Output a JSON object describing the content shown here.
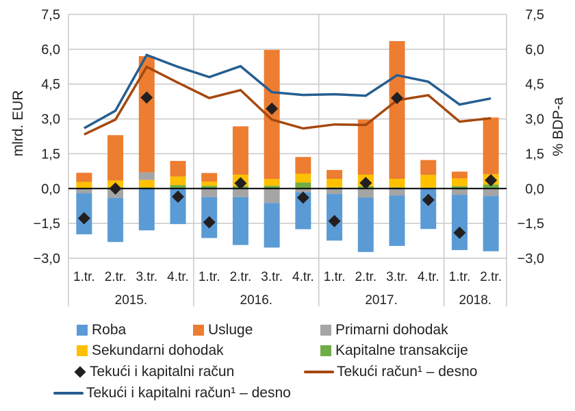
{
  "chart_data": {
    "type": "bar",
    "subtype": "stacked bar with lines and markers",
    "ylabel_left": "mlrd. EUR",
    "ylabel_right": "% BDP-a",
    "ylim": [
      -3.0,
      7.5
    ],
    "yticks": [
      "7,5",
      "6,0",
      "4,5",
      "3,0",
      "1,5",
      "0,0",
      "−1,5",
      "−3,0"
    ],
    "ytick_values": [
      7.5,
      6.0,
      4.5,
      3.0,
      1.5,
      0.0,
      -1.5,
      -3.0
    ],
    "grid": true,
    "categories": [
      "1.tr.",
      "2.tr.",
      "3.tr.",
      "4.tr.",
      "1.tr.",
      "2.tr.",
      "3.tr.",
      "4.tr.",
      "1.tr.",
      "2.tr.",
      "3.tr.",
      "4.tr.",
      "1.tr.",
      "2.tr."
    ],
    "groups": [
      {
        "label": "2015.",
        "count": 4
      },
      {
        "label": "2016.",
        "count": 4
      },
      {
        "label": "2017.",
        "count": 4
      },
      {
        "label": "2018.",
        "count": 2
      }
    ],
    "bar_series": [
      {
        "name": "Roba",
        "color": "#5b9bd5",
        "values": [
          -1.77,
          -1.9,
          -1.8,
          -1.53,
          -1.76,
          -2.06,
          -1.92,
          -1.59,
          -2.01,
          -2.34,
          -2.17,
          -1.74,
          -2.38,
          -2.38
        ]
      },
      {
        "name": "Usluge",
        "color": "#ed7d31",
        "values": [
          0.39,
          1.95,
          5.0,
          0.67,
          0.37,
          2.08,
          5.56,
          0.72,
          0.38,
          2.37,
          5.93,
          0.64,
          0.29,
          2.44
        ]
      },
      {
        "name": "Primarni dohodak",
        "color": "#a5a5a5",
        "values": [
          -0.2,
          -0.4,
          0.33,
          0.0,
          -0.37,
          -0.37,
          -0.62,
          -0.16,
          -0.23,
          -0.39,
          -0.3,
          0.0,
          -0.27,
          -0.32
        ]
      },
      {
        "name": "Sekundarni dohodak",
        "color": "#ffc000",
        "values": [
          0.29,
          0.3,
          0.32,
          0.37,
          0.18,
          0.5,
          0.29,
          0.38,
          0.37,
          0.5,
          0.37,
          0.55,
          0.34,
          0.45
        ]
      },
      {
        "name": "Kapitalne transakcije",
        "color": "#70ad47",
        "values": [
          0.0,
          0.05,
          0.05,
          0.15,
          0.12,
          0.1,
          0.12,
          0.26,
          0.05,
          0.1,
          0.05,
          0.04,
          0.1,
          0.17
        ]
      }
    ],
    "marker_series": {
      "name": "Tekući i kapitalni račun",
      "color": "#231f20",
      "values": [
        -1.28,
        0.0,
        3.92,
        -0.35,
        -1.45,
        0.23,
        3.44,
        -0.39,
        -1.4,
        0.24,
        3.9,
        -0.49,
        -1.9,
        0.36
      ]
    },
    "line_series": [
      {
        "name": "Tekući račun¹ – desno",
        "color": "#a5480e",
        "axis": "right",
        "values": [
          2.33,
          2.97,
          5.24,
          4.56,
          3.9,
          4.24,
          2.97,
          2.59,
          2.76,
          2.74,
          3.8,
          4.02,
          2.88,
          3.03
        ]
      },
      {
        "name": "Tekući i kapitalni račun¹ – desno",
        "color": "#255e91",
        "axis": "right",
        "values": [
          2.6,
          3.35,
          5.75,
          5.24,
          4.8,
          5.27,
          4.15,
          4.03,
          4.06,
          4.0,
          4.88,
          4.6,
          3.62,
          3.88
        ]
      }
    ],
    "legend": {
      "placement": "bottom",
      "items": [
        {
          "label": "Roba",
          "kind": "swatch",
          "color": "#5b9bd5"
        },
        {
          "label": "Usluge",
          "kind": "swatch",
          "color": "#ed7d31"
        },
        {
          "label": "Primarni dohodak",
          "kind": "swatch",
          "color": "#a5a5a5"
        },
        {
          "label": "Sekundarni dohodak",
          "kind": "swatch",
          "color": "#ffc000"
        },
        {
          "label": "Kapitalne transakcije",
          "kind": "swatch",
          "color": "#70ad47"
        },
        {
          "label": "Tekući i kapitalni račun",
          "kind": "diamond",
          "color": "#231f20"
        },
        {
          "label": "Tekući račun¹ – desno",
          "kind": "line",
          "color": "#a5480e"
        },
        {
          "label": "Tekući i kapitalni račun¹ – desno",
          "kind": "line",
          "color": "#255e91"
        }
      ]
    }
  }
}
